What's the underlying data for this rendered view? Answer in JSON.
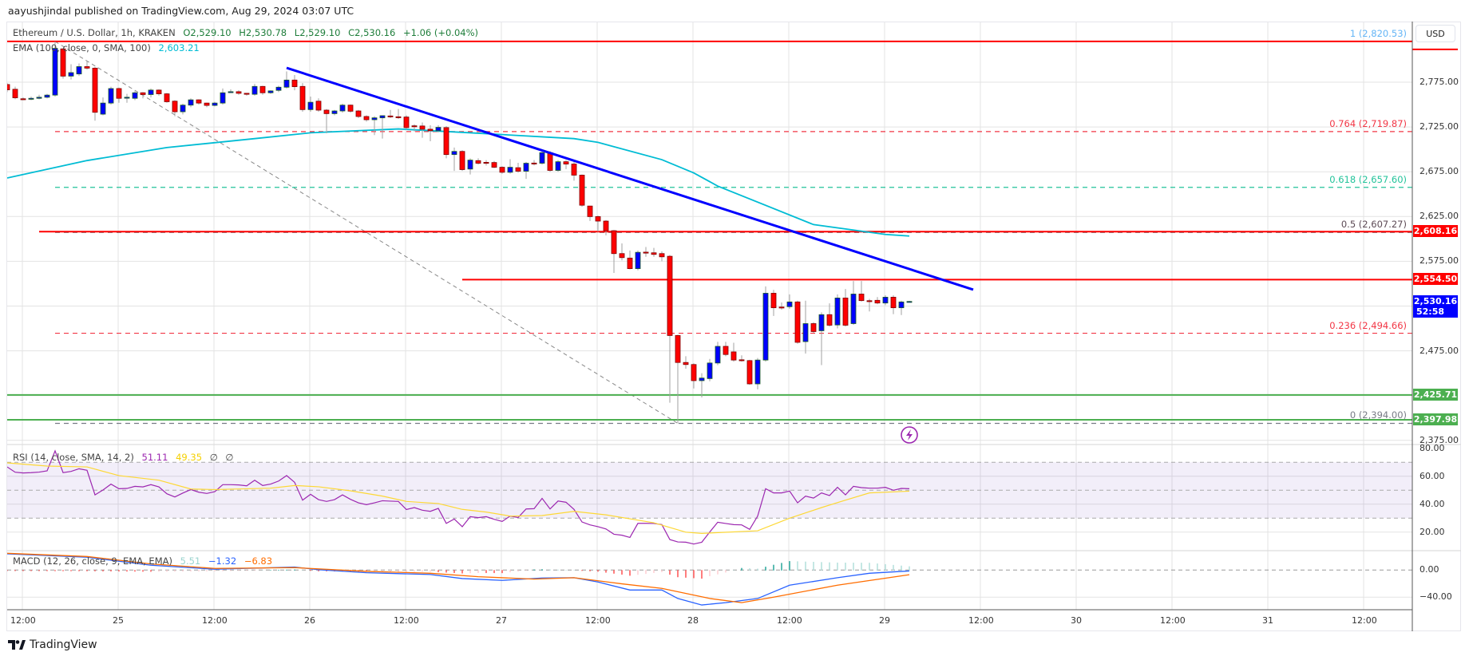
{
  "header": {
    "published": "aayushjindal published on TradingView.com, Aug 29, 2024 03:07 UTC"
  },
  "legend": {
    "symbol": "Ethereum / U.S. Dollar, 1h, KRAKEN",
    "open": "O2,529.10",
    "high": "H2,530.78",
    "low": "L2,529.10",
    "close": "C2,530.16",
    "change": "+1.06 (+0.04%)"
  },
  "ema_legend": {
    "label": "EMA (100, close, 0, SMA, 100)",
    "value": "2,603.21",
    "color": "#00bcd4"
  },
  "rsi_legend": {
    "label": "RSI (14, close, SMA, 14, 2)",
    "rsi": "51.11",
    "sma": "49.35",
    "extra1": "∅",
    "extra2": "∅"
  },
  "macd_legend": {
    "label": "MACD (12, 26, close, 9, EMA, EMA)",
    "hist": "5.51",
    "macd": "−1.32",
    "signal": "−6.83"
  },
  "currency_button": "USD",
  "price_axis": {
    "labels": [
      "2,775.00",
      "2,725.00",
      "2,675.00",
      "2,625.00",
      "2,575.00",
      "2,475.00",
      "2,375.00"
    ]
  },
  "rsi_axis": {
    "labels": [
      "80.00",
      "60.00",
      "40.00",
      "20.00"
    ]
  },
  "macd_axis": {
    "labels": [
      "0.00",
      "−40.00"
    ]
  },
  "time_axis": {
    "labels": [
      "12:00",
      "25",
      "12:00",
      "26",
      "12:00",
      "27",
      "12:00",
      "28",
      "12:00",
      "29",
      "12:00",
      "30",
      "12:00",
      "31",
      "12:00"
    ]
  },
  "badges": [
    {
      "value": "2,608.16",
      "color": "#ff0000"
    },
    {
      "value": "2,554.50",
      "color": "#ff0000"
    },
    {
      "value": "2,530.16",
      "sub": "52:58",
      "color": "#0000ff"
    },
    {
      "value": "2,425.71",
      "color": "#4caf50"
    },
    {
      "value": "2,397.98",
      "color": "#4caf50"
    }
  ],
  "horizontal_lines": [
    {
      "price": 2820.53,
      "color": "#ff0000",
      "from": "Aug 24 10:00"
    },
    {
      "price": 2608.16,
      "color": "#ff0000",
      "from": "Aug 24 14:00"
    },
    {
      "price": 2554.5,
      "color": "#ff0000",
      "from": "Aug 26 19:00"
    },
    {
      "price": 2425.71,
      "color": "#4caf50",
      "from": "Aug 24 10:00"
    },
    {
      "price": 2397.98,
      "color": "#4caf50",
      "from": "Aug 24 10:00"
    }
  ],
  "fib": {
    "from": {
      "time": "Aug 24 16:00",
      "price": 2820.53
    },
    "to": {
      "time": "Aug 27 22:00",
      "price": 2394.0
    },
    "levels": [
      {
        "label": "1 (2,820.53)",
        "price": 2820.53,
        "color": "#64b5f6"
      },
      {
        "label": "0.764 (2,719.87)",
        "price": 2719.87,
        "color": "#f23645"
      },
      {
        "label": "0.618 (2,657.60)",
        "price": 2657.6,
        "color": "#22c39a"
      },
      {
        "label": "0.5 (2,607.27)",
        "price": 2607.27,
        "color": "#5d4a55"
      },
      {
        "label": "0.236 (2,494.66)",
        "price": 2494.66,
        "color": "#f23645"
      },
      {
        "label": "0 (2,394.00)",
        "price": 2394.0,
        "color": "#787b86"
      }
    ]
  },
  "trendline": {
    "color": "#0000ff",
    "points": [
      [
        "Aug 25 21:00",
        2791
      ],
      [
        "Aug 29 11:00",
        2543.3
      ]
    ]
  },
  "icons": {
    "alert": "lightning-icon",
    "brand": "tradingview-logo"
  },
  "branding": "TradingView",
  "chart_data": {
    "type": "candlestick",
    "start": "Aug 24 10:00",
    "interval": "1h",
    "up_color": "#0000ff",
    "down_color": "#ff0000",
    "ohlc": [
      [
        2772.4,
        2774,
        2764,
        2766.5
      ],
      [
        2767.1,
        2770,
        2756,
        2757.6
      ],
      [
        2756.5,
        2758,
        2755,
        2756.2
      ],
      [
        2756.2,
        2759,
        2755,
        2757.0
      ],
      [
        2757,
        2761,
        2756,
        2758.2
      ],
      [
        2758.2,
        2762,
        2757,
        2760.6
      ],
      [
        2760.6,
        2820.5,
        2759,
        2812.8
      ],
      [
        2812.2,
        2813,
        2779,
        2781.8
      ],
      [
        2781.8,
        2795,
        2778,
        2785.7
      ],
      [
        2784.2,
        2796,
        2782,
        2792.4
      ],
      [
        2792.4,
        2799,
        2789,
        2790.7
      ],
      [
        2790.7,
        2792,
        2732,
        2741.4
      ],
      [
        2739.3,
        2758,
        2738,
        2751.7
      ],
      [
        2751.7,
        2770,
        2750,
        2767.9
      ],
      [
        2767.9,
        2769,
        2752,
        2757
      ],
      [
        2758,
        2762,
        2752,
        2758.2
      ],
      [
        2757,
        2765,
        2755,
        2763.2
      ],
      [
        2763.2,
        2764,
        2757,
        2761.2
      ],
      [
        2761.2,
        2768,
        2758,
        2766.2
      ],
      [
        2766.2,
        2767,
        2760,
        2762
      ],
      [
        2762,
        2763,
        2752,
        2753.2
      ],
      [
        2753.8,
        2755,
        2737,
        2742
      ],
      [
        2742,
        2751,
        2739,
        2749.4
      ],
      [
        2749.4,
        2757,
        2747,
        2755.3
      ],
      [
        2755.3,
        2756,
        2750,
        2751.7
      ],
      [
        2751.7,
        2752,
        2747,
        2749.1
      ],
      [
        2749.1,
        2753,
        2748,
        2751.7
      ],
      [
        2751.7,
        2768,
        2750,
        2763.2
      ],
      [
        2764.4,
        2767,
        2763,
        2764.4
      ],
      [
        2764.4,
        2766,
        2761,
        2762.6
      ],
      [
        2762.6,
        2763,
        2760,
        2761.5
      ],
      [
        2761.5,
        2773,
        2760,
        2770.3
      ],
      [
        2770.3,
        2771,
        2761,
        2763.2
      ],
      [
        2763.2,
        2766,
        2762,
        2765.3
      ],
      [
        2765.9,
        2771,
        2764,
        2769.4
      ],
      [
        2769.4,
        2787,
        2768,
        2777.4
      ],
      [
        2777.4,
        2783,
        2766,
        2770
      ],
      [
        2770.3,
        2774,
        2742,
        2744.4
      ],
      [
        2744.4,
        2759,
        2742,
        2752.6
      ],
      [
        2753.8,
        2757,
        2742,
        2743.8
      ],
      [
        2743.8,
        2745,
        2718,
        2739.9
      ],
      [
        2739.9,
        2744,
        2738,
        2742.9
      ],
      [
        2742.9,
        2751,
        2741,
        2749.4
      ],
      [
        2749.4,
        2750,
        2741,
        2742.6
      ],
      [
        2742.9,
        2744,
        2735,
        2736.7
      ],
      [
        2736.7,
        2738,
        2731,
        2733.1
      ],
      [
        2733.1,
        2737,
        2716,
        2735.2
      ],
      [
        2735.2,
        2738,
        2712,
        2737.6
      ],
      [
        2737.3,
        2744,
        2735,
        2737
      ],
      [
        2736.4,
        2745,
        2734,
        2736.1
      ],
      [
        2736.1,
        2738,
        2722,
        2724.3
      ],
      [
        2726.3,
        2728,
        2720,
        2726.1
      ],
      [
        2726.1,
        2730,
        2713,
        2722.5
      ],
      [
        2722.5,
        2727,
        2709,
        2720.8
      ],
      [
        2720.8,
        2727,
        2719,
        2724.6
      ],
      [
        2724.3,
        2726,
        2690,
        2694.2
      ],
      [
        2694.2,
        2702,
        2676,
        2697.7
      ],
      [
        2697.7,
        2699,
        2676,
        2677.4
      ],
      [
        2678,
        2690,
        2672,
        2688
      ],
      [
        2687.4,
        2690,
        2683,
        2684.5
      ],
      [
        2685.5,
        2688,
        2682,
        2685.3
      ],
      [
        2685.3,
        2687,
        2679,
        2680
      ],
      [
        2680,
        2681,
        2673,
        2674.4
      ],
      [
        2674.4,
        2689,
        2673,
        2680
      ],
      [
        2679.5,
        2685,
        2674,
        2675.6
      ],
      [
        2675.6,
        2686,
        2667,
        2684.5
      ],
      [
        2684.7,
        2688,
        2682,
        2684.5
      ],
      [
        2684.5,
        2700,
        2683,
        2696.3
      ],
      [
        2696.3,
        2698,
        2675,
        2676.5
      ],
      [
        2676.5,
        2688,
        2675,
        2686.2
      ],
      [
        2686.2,
        2688,
        2678,
        2683.6
      ],
      [
        2683.6,
        2686,
        2665,
        2671.2
      ],
      [
        2671.2,
        2672,
        2636,
        2637.6
      ],
      [
        2636.7,
        2637,
        2620,
        2624.9
      ],
      [
        2624.9,
        2626,
        2608,
        2619.9
      ],
      [
        2619.9,
        2621,
        2604,
        2609.2
      ],
      [
        2609.2,
        2610,
        2562,
        2583.6
      ],
      [
        2583.6,
        2595,
        2576,
        2579.1
      ],
      [
        2578.6,
        2587,
        2566,
        2566.8
      ],
      [
        2566.8,
        2587,
        2565,
        2585
      ],
      [
        2585.2,
        2591,
        2580,
        2585
      ],
      [
        2584.5,
        2590,
        2580,
        2582.7
      ],
      [
        2583.6,
        2586,
        2575,
        2580
      ],
      [
        2580.6,
        2582,
        2417,
        2492.1
      ],
      [
        2492.1,
        2493,
        2394,
        2462
      ],
      [
        2462,
        2469,
        2455,
        2459.7
      ],
      [
        2459.7,
        2461,
        2433,
        2441.7
      ],
      [
        2441.7,
        2450,
        2423,
        2444.6
      ],
      [
        2444,
        2466,
        2441,
        2461.4
      ],
      [
        2461.4,
        2485,
        2459,
        2480
      ],
      [
        2480,
        2485,
        2469,
        2470.9
      ],
      [
        2473.8,
        2484,
        2463,
        2464.7
      ],
      [
        2465,
        2470,
        2463,
        2464.7
      ],
      [
        2464.1,
        2465,
        2437,
        2438.1
      ],
      [
        2438.1,
        2467,
        2432,
        2464.7
      ],
      [
        2464.7,
        2547,
        2463,
        2539.3
      ],
      [
        2539.3,
        2543,
        2514,
        2523.1
      ],
      [
        2523.9,
        2529,
        2521,
        2523.7
      ],
      [
        2524.3,
        2538,
        2522,
        2529.6
      ],
      [
        2529.6,
        2531,
        2483,
        2484.5
      ],
      [
        2485.3,
        2531,
        2472,
        2505.4
      ],
      [
        2505.4,
        2507,
        2495,
        2496.5
      ],
      [
        2497.4,
        2518,
        2459,
        2515.4
      ],
      [
        2515.4,
        2528,
        2502,
        2503.6
      ],
      [
        2503.9,
        2538,
        2500,
        2534
      ],
      [
        2534,
        2544,
        2502,
        2503.6
      ],
      [
        2505.4,
        2553,
        2504,
        2538.4
      ],
      [
        2538.4,
        2553,
        2530,
        2531.1
      ],
      [
        2531,
        2533,
        2519,
        2530.8
      ],
      [
        2531.4,
        2535,
        2527,
        2528.4
      ],
      [
        2528.4,
        2537,
        2526,
        2534.9
      ],
      [
        2534.9,
        2537,
        2516,
        2523.1
      ],
      [
        2523.1,
        2531,
        2515,
        2529.6
      ],
      [
        2529.1,
        2530.78,
        2529.1,
        2530.16
      ]
    ],
    "ema100": [
      [
        "Aug 24 10:00",
        2668
      ],
      [
        "Aug 24 20:00",
        2687.5
      ],
      [
        "Aug 25 06:00",
        2702
      ],
      [
        "Aug 25 17:00",
        2712
      ],
      [
        "Aug 26 00:00",
        2718.5
      ],
      [
        "Aug 26 11:00",
        2722.8
      ],
      [
        "Aug 26 21:00",
        2718
      ],
      [
        "Aug 27 09:00",
        2712
      ],
      [
        "Aug 27 12:00",
        2707.8
      ],
      [
        "Aug 27 20:00",
        2688.5
      ],
      [
        "Aug 28 00:00",
        2673.7
      ],
      [
        "Aug 28 03:00",
        2659
      ],
      [
        "Aug 28 15:00",
        2616
      ],
      [
        "Aug 29 00:00",
        2605
      ],
      [
        "Aug 29 03:00",
        2603.21
      ]
    ],
    "rsi": [
      66.7,
      62.9,
      62.4,
      62.6,
      63.0,
      63.9,
      78.2,
      62.6,
      63.5,
      65.4,
      64.3,
      46.7,
      50.2,
      54.4,
      51.1,
      51.3,
      52.8,
      52.4,
      54,
      52.4,
      47.5,
      45.2,
      48,
      50.5,
      48.6,
      47.7,
      49,
      54,
      54,
      53.8,
      53.2,
      57.2,
      53.4,
      54.4,
      56.6,
      60.5,
      55.7,
      42.9,
      47.1,
      43.3,
      42,
      43.3,
      46.7,
      43.5,
      41,
      39.7,
      41,
      42.5,
      42.2,
      42,
      36.2,
      37.6,
      35.7,
      34.9,
      37,
      26.3,
      29.4,
      23.9,
      31.1,
      30.4,
      31.1,
      29.2,
      27.7,
      31.5,
      30.5,
      36.6,
      36.8,
      44.2,
      36.6,
      42.3,
      41.4,
      36.3,
      27.3,
      25.2,
      23.9,
      22.3,
      18.5,
      17.8,
      16.2,
      26.3,
      26.3,
      26.2,
      25.4,
      14.7,
      13,
      12.8,
      11.5,
      12.8,
      20.1,
      27.1,
      26.2,
      25.4,
      25.2,
      22,
      31.5,
      51.1,
      48.1,
      48.1,
      49.4,
      41,
      45.8,
      44.4,
      48.1,
      46.2,
      52.1,
      46.7,
      52.8,
      51.9,
      51.5,
      51.5,
      52.1,
      50,
      51.3,
      51.11
    ],
    "rsi_sma": [
      [
        "Aug 24 10:00",
        69.6
      ],
      [
        "Aug 24 15:00",
        67.3
      ],
      [
        "Aug 24 20:00",
        66.7
      ],
      [
        "Aug 25 00:00",
        60.5
      ],
      [
        "Aug 25 05:00",
        57.2
      ],
      [
        "Aug 25 09:00",
        50.9
      ],
      [
        "Aug 25 12:00",
        50.5
      ],
      [
        "Aug 25 19:00",
        51.5
      ],
      [
        "Aug 25 22:00",
        53.4
      ],
      [
        "Aug 26 01:00",
        52.5
      ],
      [
        "Aug 26 05:00",
        49.6
      ],
      [
        "Aug 26 09:00",
        45.8
      ],
      [
        "Aug 26 12:00",
        42
      ],
      [
        "Aug 26 16:00",
        40.5
      ],
      [
        "Aug 26 19:00",
        36.3
      ],
      [
        "Aug 26 22:00",
        34.4
      ],
      [
        "Aug 27 01:00",
        31.5
      ],
      [
        "Aug 27 05:00",
        31.9
      ],
      [
        "Aug 27 09:00",
        34.9
      ],
      [
        "Aug 27 13:00",
        32.4
      ],
      [
        "Aug 27 19:00",
        26.7
      ],
      [
        "Aug 27 23:00",
        20
      ],
      [
        "Aug 28 01:00",
        19.1
      ],
      [
        "Aug 28 08:00",
        21
      ],
      [
        "Aug 28 12:00",
        30
      ],
      [
        "Aug 28 16:00",
        37.6
      ],
      [
        "Aug 28 19:00",
        42.9
      ],
      [
        "Aug 28 22:00",
        48.1
      ],
      [
        "Aug 29 03:00",
        49.35
      ]
    ],
    "rsi_bands": {
      "upper": 70,
      "middle": 50,
      "lower": 30
    },
    "macd": [
      [
        "Aug 24 10:00",
        23.9
      ],
      [
        "Aug 24 20:00",
        18.9
      ],
      [
        "Aug 25 04:00",
        7.1
      ],
      [
        "Aug 25 12:00",
        1.2
      ],
      [
        "Aug 25 22:00",
        4.4
      ],
      [
        "Aug 26 01:00",
        0.5
      ],
      [
        "Aug 26 07:00",
        -3.9
      ],
      [
        "Aug 26 15:00",
        -6.6
      ],
      [
        "Aug 26 19:00",
        -12.5
      ],
      [
        "Aug 27 00:00",
        -15.2
      ],
      [
        "Aug 27 05:00",
        -11.7
      ],
      [
        "Aug 27 09:00",
        -11.3
      ],
      [
        "Aug 27 12:00",
        -17.6
      ],
      [
        "Aug 27 16:00",
        -29.4
      ],
      [
        "Aug 27 20:00",
        -29.4
      ],
      [
        "Aug 27 22:00",
        -41.9
      ],
      [
        "Aug 28 01:00",
        -51.5
      ],
      [
        "Aug 28 04:00",
        -48
      ],
      [
        "Aug 28 08:00",
        -41.9
      ],
      [
        "Aug 28 12:00",
        -22.3
      ],
      [
        "Aug 28 18:00",
        -11.3
      ],
      [
        "Aug 28 22:00",
        -4.7
      ],
      [
        "Aug 29 03:00",
        -1.32
      ]
    ],
    "signal": [
      [
        "Aug 24 10:00",
        24.7
      ],
      [
        "Aug 24 20:00",
        20
      ],
      [
        "Aug 25 04:00",
        9
      ],
      [
        "Aug 25 12:00",
        2.4
      ],
      [
        "Aug 25 22:00",
        3.6
      ],
      [
        "Aug 26 07:00",
        -1.9
      ],
      [
        "Aug 26 15:00",
        -4.7
      ],
      [
        "Aug 26 21:00",
        -9.8
      ],
      [
        "Aug 27 04:00",
        -13.3
      ],
      [
        "Aug 27 09:00",
        -11.3
      ],
      [
        "Aug 27 15:00",
        -20.3
      ],
      [
        "Aug 27 20:00",
        -27
      ],
      [
        "Aug 28 02:00",
        -41.9
      ],
      [
        "Aug 28 06:00",
        -48
      ],
      [
        "Aug 28 10:00",
        -39.9
      ],
      [
        "Aug 28 18:00",
        -22.3
      ],
      [
        "Aug 29 03:00",
        -6.83
      ]
    ],
    "colors": {
      "ema": "#00bcd4",
      "rsi": "#9c27b0",
      "rsi_sma": "#fdd835",
      "macd": "#2962ff",
      "signal": "#ff6d00"
    }
  }
}
